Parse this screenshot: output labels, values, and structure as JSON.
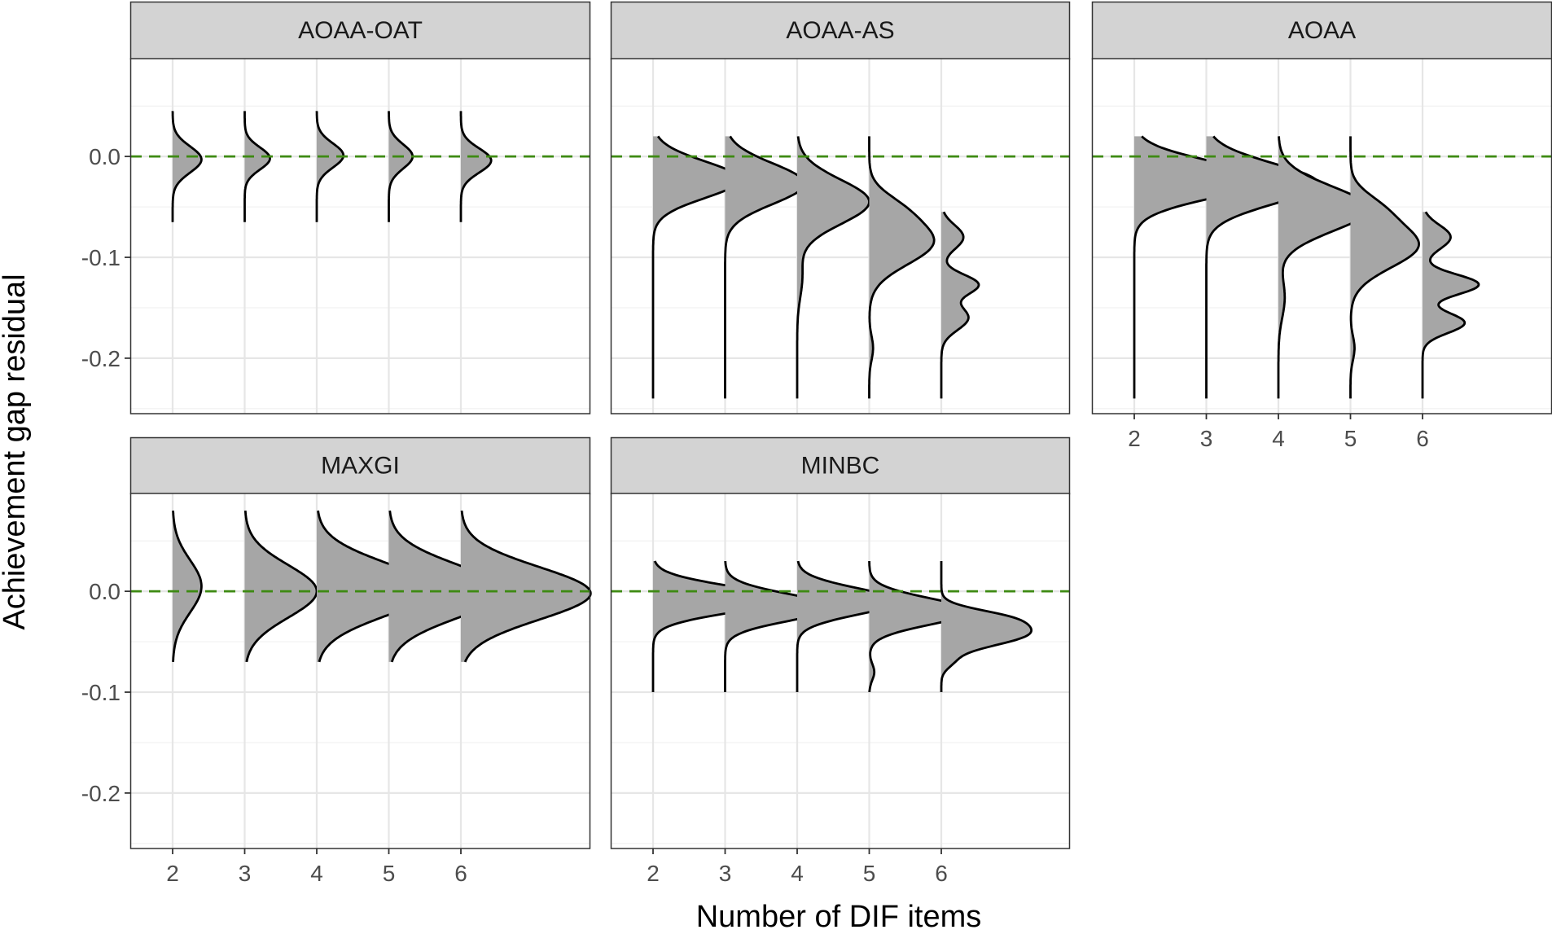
{
  "chart_data": {
    "type": "ridgeline-density",
    "xlabel": "Number of DIF items",
    "ylabel": "Achievement gap residual",
    "x_categories": [
      "2",
      "3",
      "4",
      "5",
      "6"
    ],
    "yticks": [
      "0.0",
      "-0.1",
      "-0.2"
    ],
    "ylim": [
      -0.255,
      0.097
    ],
    "reference_line": {
      "y": 0.0,
      "style": "dashed",
      "color": "#3d8a12"
    },
    "colors": {
      "fill": "#a6a6a6",
      "outline": "#000000",
      "strip_bg": "#d3d3d3",
      "grid": "#e6e6e6"
    },
    "facets": [
      {
        "name": "AOAA-OAT",
        "densities": [
          {
            "x": "2",
            "range": [
              -0.065,
              0.045
            ],
            "peaks": [
              [
                -0.003,
                0.013,
                1.0
              ]
            ],
            "widths": [
              0.4
            ]
          },
          {
            "x": "3",
            "range": [
              -0.065,
              0.045
            ],
            "peaks": [
              [
                -0.002,
                0.011,
                0.8
              ]
            ],
            "widths": [
              0.35
            ]
          },
          {
            "x": "4",
            "range": [
              -0.065,
              0.045
            ],
            "peaks": [
              [
                0.001,
                0.012,
                0.9
              ]
            ],
            "widths": [
              0.37
            ]
          },
          {
            "x": "5",
            "range": [
              -0.065,
              0.045
            ],
            "peaks": [
              [
                0.0,
                0.012,
                0.9
              ]
            ],
            "widths": [
              0.33
            ]
          },
          {
            "x": "6",
            "range": [
              -0.065,
              0.045
            ],
            "peaks": [
              [
                -0.004,
                0.012,
                1.0
              ]
            ],
            "widths": [
              0.42
            ]
          }
        ]
      },
      {
        "name": "AOAA-AS",
        "densities": [
          {
            "x": "2",
            "range": [
              -0.24,
              0.02
            ],
            "peaks": [
              [
                -0.023,
                0.018,
                1.0
              ]
            ],
            "widths": [
              1.2
            ]
          },
          {
            "x": "3",
            "range": [
              -0.24,
              0.02
            ],
            "peaks": [
              [
                -0.027,
                0.02,
                1.0
              ]
            ],
            "widths": [
              1.1
            ]
          },
          {
            "x": "4",
            "range": [
              -0.24,
              0.02
            ],
            "peaks": [
              [
                -0.045,
                0.022,
                1.0
              ],
              [
                -0.12,
                0.02,
                0.07
              ]
            ],
            "widths": [
              1.0
            ]
          },
          {
            "x": "5",
            "range": [
              -0.24,
              0.02
            ],
            "peaks": [
              [
                -0.085,
                0.022,
                1.0
              ],
              [
                -0.05,
                0.015,
                0.3
              ],
              [
                -0.19,
                0.012,
                0.06
              ]
            ],
            "widths": [
              0.9
            ]
          },
          {
            "x": "6",
            "range": [
              -0.24,
              -0.055
            ],
            "peaks": [
              [
                -0.127,
                0.01,
                0.75
              ],
              [
                -0.08,
                0.012,
                0.45
              ],
              [
                -0.16,
                0.012,
                0.55
              ]
            ],
            "widths": [
              0.52
            ]
          }
        ]
      },
      {
        "name": "AOAA",
        "densities": [
          {
            "x": "2",
            "range": [
              -0.24,
              0.02
            ],
            "peaks": [
              [
                -0.023,
                0.018,
                1.0
              ]
            ],
            "widths": [
              1.8
            ]
          },
          {
            "x": "3",
            "range": [
              -0.24,
              0.02
            ],
            "peaks": [
              [
                -0.027,
                0.02,
                1.0
              ]
            ],
            "widths": [
              1.55
            ]
          },
          {
            "x": "4",
            "range": [
              -0.24,
              0.02
            ],
            "peaks": [
              [
                -0.052,
                0.022,
                1.0
              ],
              [
                -0.14,
                0.02,
                0.07
              ]
            ],
            "widths": [
              1.25
            ]
          },
          {
            "x": "5",
            "range": [
              -0.24,
              0.02
            ],
            "peaks": [
              [
                -0.088,
                0.022,
                1.0
              ],
              [
                -0.05,
                0.015,
                0.3
              ],
              [
                -0.19,
                0.012,
                0.06
              ]
            ],
            "widths": [
              0.95
            ]
          },
          {
            "x": "6",
            "range": [
              -0.24,
              -0.055
            ],
            "peaks": [
              [
                -0.127,
                0.01,
                0.8
              ],
              [
                -0.08,
                0.012,
                0.4
              ],
              [
                -0.165,
                0.01,
                0.6
              ]
            ],
            "widths": [
              0.78
            ]
          }
        ]
      },
      {
        "name": "MAXGI",
        "densities": [
          {
            "x": "2",
            "range": [
              -0.07,
              0.08
            ],
            "peaks": [
              [
                0.005,
                0.026,
                1.0
              ]
            ],
            "widths": [
              0.4
            ]
          },
          {
            "x": "3",
            "range": [
              -0.07,
              0.08
            ],
            "peaks": [
              [
                0.0,
                0.026,
                1.0
              ]
            ],
            "widths": [
              1.0
            ]
          },
          {
            "x": "4",
            "range": [
              -0.07,
              0.08
            ],
            "peaks": [
              [
                0.002,
                0.026,
                1.0
              ]
            ],
            "widths": [
              1.6
            ]
          },
          {
            "x": "5",
            "range": [
              -0.07,
              0.08
            ],
            "peaks": [
              [
                0.0,
                0.026,
                1.0
              ]
            ],
            "widths": [
              1.6
            ]
          },
          {
            "x": "6",
            "range": [
              -0.07,
              0.08
            ],
            "peaks": [
              [
                -0.002,
                0.026,
                1.0
              ]
            ],
            "widths": [
              1.8
            ]
          }
        ]
      },
      {
        "name": "MINBC",
        "densities": [
          {
            "x": "2",
            "range": [
              -0.1,
              0.03
            ],
            "peaks": [
              [
                -0.008,
                0.013,
                1.0
              ]
            ],
            "widths": [
              1.8
            ]
          },
          {
            "x": "3",
            "range": [
              -0.1,
              0.03
            ],
            "peaks": [
              [
                -0.016,
                0.013,
                1.0
              ]
            ],
            "widths": [
              1.5
            ]
          },
          {
            "x": "4",
            "range": [
              -0.1,
              0.03
            ],
            "peaks": [
              [
                -0.01,
                0.013,
                1.0
              ]
            ],
            "widths": [
              1.4
            ]
          },
          {
            "x": "5",
            "range": [
              -0.1,
              0.03
            ],
            "peaks": [
              [
                -0.02,
                0.013,
                1.0
              ],
              [
                -0.08,
                0.008,
                0.05
              ]
            ],
            "widths": [
              1.4
            ]
          },
          {
            "x": "6",
            "range": [
              -0.1,
              0.03
            ],
            "peaks": [
              [
                -0.042,
                0.012,
                1.0
              ],
              [
                -0.025,
                0.008,
                0.45
              ],
              [
                -0.07,
                0.007,
                0.1
              ]
            ],
            "widths": [
              1.25
            ]
          }
        ]
      }
    ]
  }
}
